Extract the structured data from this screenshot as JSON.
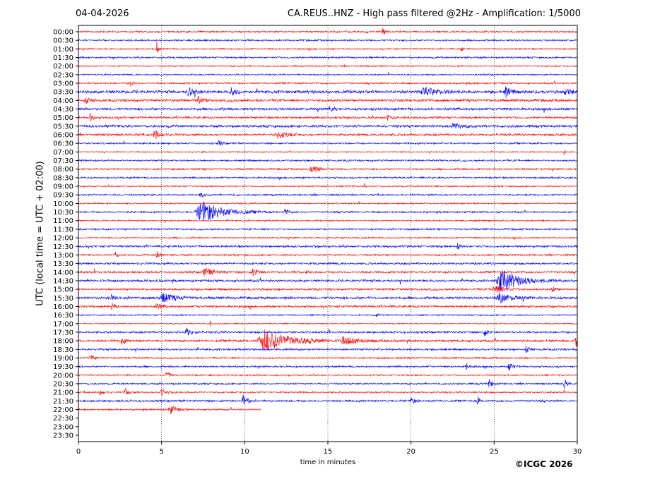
{
  "header": {
    "date": "04-04-2026",
    "title": "CA.REUS..HNZ - High pass filtered @2Hz - Amplification: 1/5000"
  },
  "footer": {
    "copyright": "©ICGC 2026"
  },
  "chart_data": {
    "type": "line",
    "title": "CA.REUS..HNZ - High pass filtered @2Hz - Amplification: 1/5000",
    "xlabel": "time in minutes",
    "ylabel": "UTC (local time = UTC + 02:00)",
    "xlim": [
      0,
      30
    ],
    "xticks": [
      "0",
      "5",
      "10",
      "15",
      "20",
      "25",
      "30"
    ],
    "grid": "vertical dotted at each 5 minutes",
    "colors": {
      "even": "#ff0000",
      "odd": "#0000ff"
    },
    "row_labels": [
      "00:00",
      "00:30",
      "01:00",
      "01:30",
      "02:00",
      "02:30",
      "03:00",
      "03:30",
      "04:00",
      "04:30",
      "05:00",
      "05:30",
      "06:00",
      "06:30",
      "07:00",
      "07:30",
      "08:00",
      "08:30",
      "09:00",
      "09:30",
      "10:00",
      "10:30",
      "11:00",
      "11:30",
      "12:00",
      "12:30",
      "13:00",
      "13:30",
      "14:00",
      "14:30",
      "15:00",
      "15:30",
      "16:00",
      "16:30",
      "17:00",
      "17:30",
      "18:00",
      "18:30",
      "19:00",
      "19:30",
      "20:00",
      "20:30",
      "21:00",
      "21:30",
      "22:00",
      "22:30",
      "23:00",
      "23:30"
    ],
    "last_trace_end_minute": 11,
    "noise_levels": [
      1.2,
      1.2,
      1.0,
      1.2,
      1.0,
      1.0,
      1.2,
      2.2,
      1.8,
      1.8,
      1.5,
      1.8,
      1.6,
      1.2,
      0.8,
      1.2,
      1.2,
      1.2,
      1.0,
      1.2,
      1.0,
      1.2,
      1.0,
      1.2,
      1.0,
      1.5,
      1.2,
      1.4,
      1.5,
      1.6,
      1.5,
      1.8,
      1.5,
      1.0,
      0.8,
      1.5,
      1.6,
      1.4,
      1.2,
      1.2,
      1.0,
      1.2,
      1.2,
      1.4,
      1.2
    ],
    "events": [
      {
        "row": 0,
        "minute": 18.3,
        "amp": 5,
        "dur": 0.2
      },
      {
        "row": 2,
        "minute": 4.7,
        "amp": 12,
        "dur": 0.1
      },
      {
        "row": 2,
        "minute": 23,
        "amp": 6,
        "dur": 0.1
      },
      {
        "row": 6,
        "minute": 3.1,
        "amp": 5,
        "dur": 0.2
      },
      {
        "row": 7,
        "minute": 6.6,
        "amp": 7,
        "dur": 0.3
      },
      {
        "row": 7,
        "minute": 9.2,
        "amp": 6,
        "dur": 0.3
      },
      {
        "row": 7,
        "minute": 20.8,
        "amp": 6,
        "dur": 0.8
      },
      {
        "row": 7,
        "minute": 25.7,
        "amp": 7,
        "dur": 0.3
      },
      {
        "row": 7,
        "minute": 29.3,
        "amp": 5,
        "dur": 0.3
      },
      {
        "row": 8,
        "minute": 0.4,
        "amp": 5,
        "dur": 0.3
      },
      {
        "row": 8,
        "minute": 7.2,
        "amp": 5,
        "dur": 0.3
      },
      {
        "row": 9,
        "minute": 15.1,
        "amp": 6,
        "dur": 0.2
      },
      {
        "row": 10,
        "minute": 0.7,
        "amp": 6,
        "dur": 0.2
      },
      {
        "row": 10,
        "minute": 18.6,
        "amp": 5,
        "dur": 0.2
      },
      {
        "row": 11,
        "minute": 22.5,
        "amp": 5,
        "dur": 0.5
      },
      {
        "row": 12,
        "minute": 4.6,
        "amp": 7,
        "dur": 0.4
      },
      {
        "row": 12,
        "minute": 12,
        "amp": 5,
        "dur": 0.6
      },
      {
        "row": 13,
        "minute": 8.4,
        "amp": 5,
        "dur": 0.2
      },
      {
        "row": 14,
        "minute": 29.2,
        "amp": 5,
        "dur": 0.1
      },
      {
        "row": 16,
        "minute": 14,
        "amp": 5,
        "dur": 0.5
      },
      {
        "row": 18,
        "minute": 17.2,
        "amp": 5,
        "dur": 0.1
      },
      {
        "row": 19,
        "minute": 7.3,
        "amp": 4,
        "dur": 0.2
      },
      {
        "row": 21,
        "minute": 7.4,
        "amp": 16,
        "dur": 1.4
      },
      {
        "row": 21,
        "minute": 12.4,
        "amp": 6,
        "dur": 0.2
      },
      {
        "row": 25,
        "minute": 22.8,
        "amp": 5,
        "dur": 0.2
      },
      {
        "row": 26,
        "minute": 4.7,
        "amp": 6,
        "dur": 0.2
      },
      {
        "row": 26,
        "minute": 2.2,
        "amp": 5,
        "dur": 0.2
      },
      {
        "row": 28,
        "minute": 7.6,
        "amp": 6,
        "dur": 0.6
      },
      {
        "row": 28,
        "minute": 10.5,
        "amp": 6,
        "dur": 0.3
      },
      {
        "row": 28,
        "minute": 13.7,
        "amp": 5,
        "dur": 0.1
      },
      {
        "row": 29,
        "minute": 25.4,
        "amp": 16,
        "dur": 1.2
      },
      {
        "row": 30,
        "minute": 25.0,
        "amp": 6,
        "dur": 0.6
      },
      {
        "row": 30,
        "minute": 28.5,
        "amp": 4,
        "dur": 0.2
      },
      {
        "row": 31,
        "minute": 5.0,
        "amp": 7,
        "dur": 0.8
      },
      {
        "row": 31,
        "minute": 25.3,
        "amp": 7,
        "dur": 0.8
      },
      {
        "row": 31,
        "minute": 2.0,
        "amp": 5,
        "dur": 0.2
      },
      {
        "row": 32,
        "minute": 2.0,
        "amp": 6,
        "dur": 0.2
      },
      {
        "row": 32,
        "minute": 4.7,
        "amp": 5,
        "dur": 0.3
      },
      {
        "row": 33,
        "minute": 17.9,
        "amp": 5,
        "dur": 0.1
      },
      {
        "row": 34,
        "minute": 7.9,
        "amp": 6,
        "dur": 0.1
      },
      {
        "row": 35,
        "minute": 6.5,
        "amp": 6,
        "dur": 0.3
      },
      {
        "row": 35,
        "minute": 24.4,
        "amp": 6,
        "dur": 0.2
      },
      {
        "row": 36,
        "minute": 11.2,
        "amp": 16,
        "dur": 1.6
      },
      {
        "row": 36,
        "minute": 16.0,
        "amp": 5,
        "dur": 1.2
      },
      {
        "row": 36,
        "minute": 29.9,
        "amp": 10,
        "dur": 0.2
      },
      {
        "row": 36,
        "minute": 2.6,
        "amp": 6,
        "dur": 0.2
      },
      {
        "row": 37,
        "minute": 26.9,
        "amp": 6,
        "dur": 0.2
      },
      {
        "row": 38,
        "minute": 0.7,
        "amp": 6,
        "dur": 0.2
      },
      {
        "row": 39,
        "minute": 25.9,
        "amp": 6,
        "dur": 0.3
      },
      {
        "row": 39,
        "minute": 23.3,
        "amp": 5,
        "dur": 0.2
      },
      {
        "row": 40,
        "minute": 5.3,
        "amp": 6,
        "dur": 0.2
      },
      {
        "row": 41,
        "minute": 24.7,
        "amp": 7,
        "dur": 0.2
      },
      {
        "row": 41,
        "minute": 29.2,
        "amp": 7,
        "dur": 0.2
      },
      {
        "row": 42,
        "minute": 1.3,
        "amp": 6,
        "dur": 0.2
      },
      {
        "row": 42,
        "minute": 2.8,
        "amp": 6,
        "dur": 0.2
      },
      {
        "row": 42,
        "minute": 5.0,
        "amp": 6,
        "dur": 0.3
      },
      {
        "row": 43,
        "minute": 9.9,
        "amp": 8,
        "dur": 0.3
      },
      {
        "row": 43,
        "minute": 24.0,
        "amp": 10,
        "dur": 0.1
      },
      {
        "row": 43,
        "minute": 20.0,
        "amp": 6,
        "dur": 0.2
      },
      {
        "row": 44,
        "minute": 5.5,
        "amp": 7,
        "dur": 0.4
      }
    ]
  }
}
